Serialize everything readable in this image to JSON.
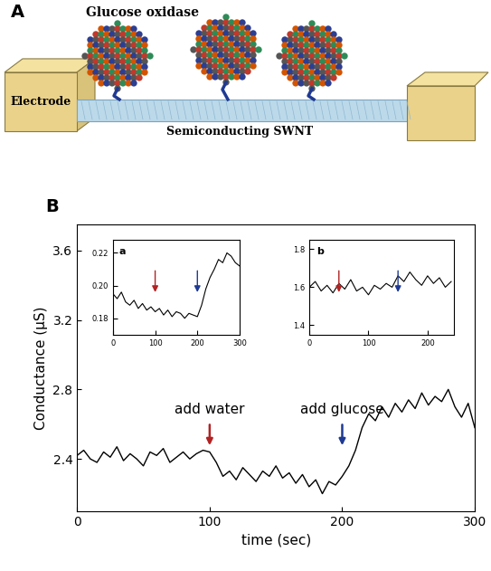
{
  "diagram": {
    "panel_label": "A",
    "enzyme": "Glucose oxidase",
    "electrode": "Electrode",
    "nanotube": "Semiconducting SWNT"
  },
  "chart_data": [
    {
      "type": "line",
      "panel_label": "B",
      "xlabel": "time (sec)",
      "ylabel": "Conductance (μS)",
      "color": "#000000",
      "x": [
        0,
        5,
        10,
        15,
        20,
        25,
        30,
        35,
        40,
        45,
        50,
        55,
        60,
        65,
        70,
        75,
        80,
        85,
        90,
        95,
        100,
        105,
        110,
        115,
        120,
        125,
        130,
        135,
        140,
        145,
        150,
        155,
        160,
        165,
        170,
        175,
        180,
        185,
        190,
        195,
        200,
        205,
        210,
        215,
        220,
        225,
        230,
        235,
        240,
        245,
        250,
        255,
        260,
        265,
        270,
        275,
        280,
        285,
        290,
        295,
        300
      ],
      "values": [
        2.42,
        2.45,
        2.4,
        2.38,
        2.44,
        2.41,
        2.47,
        2.39,
        2.43,
        2.4,
        2.36,
        2.44,
        2.42,
        2.46,
        2.38,
        2.41,
        2.44,
        2.4,
        2.43,
        2.45,
        2.44,
        2.38,
        2.3,
        2.33,
        2.28,
        2.35,
        2.31,
        2.27,
        2.33,
        2.3,
        2.36,
        2.29,
        2.32,
        2.26,
        2.31,
        2.24,
        2.28,
        2.2,
        2.27,
        2.25,
        2.3,
        2.36,
        2.45,
        2.58,
        2.66,
        2.62,
        2.7,
        2.64,
        2.72,
        2.67,
        2.74,
        2.69,
        2.78,
        2.71,
        2.76,
        2.73,
        2.8,
        2.7,
        2.64,
        2.72,
        2.58
      ],
      "xlim": [
        0,
        300
      ],
      "ylim": [
        2.1,
        3.75
      ],
      "xticks": [
        0,
        100,
        200,
        300
      ],
      "yticks": [
        2.4,
        2.8,
        3.2,
        3.6
      ],
      "annotations": [
        {
          "x": 100,
          "label": "add water",
          "color": "#b22222"
        },
        {
          "x": 200,
          "label": "add glucose",
          "color": "#1f3a93"
        }
      ]
    },
    {
      "type": "line",
      "panel_label": "a",
      "color": "#000000",
      "x": [
        0,
        10,
        20,
        30,
        40,
        50,
        60,
        70,
        80,
        90,
        100,
        110,
        120,
        130,
        140,
        150,
        160,
        170,
        180,
        190,
        200,
        210,
        220,
        230,
        240,
        250,
        260,
        270,
        280,
        290,
        300
      ],
      "values": [
        0.195,
        0.192,
        0.196,
        0.19,
        0.188,
        0.191,
        0.186,
        0.189,
        0.185,
        0.187,
        0.184,
        0.186,
        0.182,
        0.185,
        0.181,
        0.184,
        0.183,
        0.18,
        0.183,
        0.182,
        0.181,
        0.188,
        0.198,
        0.205,
        0.21,
        0.216,
        0.214,
        0.22,
        0.218,
        0.214,
        0.212
      ],
      "xlim": [
        0,
        300
      ],
      "ylim": [
        0.17,
        0.228
      ],
      "xticks": [
        0,
        100,
        200,
        300
      ],
      "yticks": [
        0.18,
        {
          "value": 0.2,
          "label": "0.20"
        },
        0.22
      ],
      "annotations": [
        {
          "x": 100,
          "color": "#b22222"
        },
        {
          "x": 200,
          "color": "#1f3a93"
        }
      ]
    },
    {
      "type": "line",
      "panel_label": "b",
      "color": "#000000",
      "x": [
        0,
        10,
        20,
        30,
        40,
        50,
        60,
        70,
        80,
        90,
        100,
        110,
        120,
        130,
        140,
        150,
        160,
        170,
        180,
        190,
        200,
        210,
        220,
        230,
        240
      ],
      "values": [
        1.6,
        1.63,
        1.58,
        1.61,
        1.57,
        1.62,
        1.59,
        1.64,
        1.58,
        1.6,
        1.56,
        1.61,
        1.59,
        1.62,
        1.6,
        1.66,
        1.63,
        1.68,
        1.64,
        1.61,
        1.66,
        1.62,
        1.65,
        1.6,
        1.63
      ],
      "xlim": [
        0,
        245
      ],
      "ylim": [
        1.35,
        1.85
      ],
      "xticks": [
        0,
        100,
        200
      ],
      "yticks": [
        1.4,
        1.6,
        1.8
      ],
      "annotations": [
        {
          "x": 50,
          "color": "#b22222"
        },
        {
          "x": 150,
          "color": "#1f3a93"
        }
      ]
    }
  ]
}
